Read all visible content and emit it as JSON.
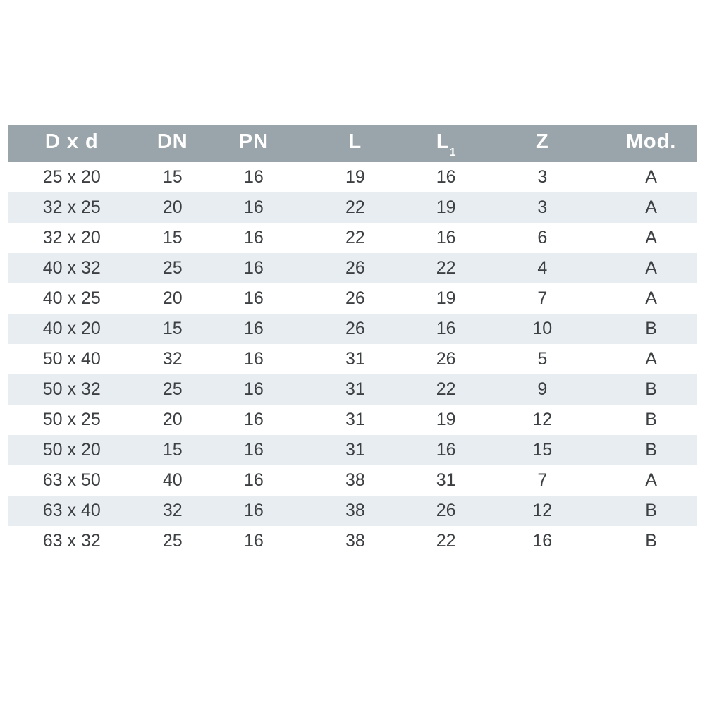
{
  "table": {
    "headers": [
      {
        "label": "D x d",
        "sub": ""
      },
      {
        "label": "DN",
        "sub": ""
      },
      {
        "label": "PN",
        "sub": ""
      },
      {
        "label": "L",
        "sub": ""
      },
      {
        "label": "L",
        "sub": "1"
      },
      {
        "label": "Z",
        "sub": ""
      },
      {
        "label": "Mod.",
        "sub": ""
      }
    ],
    "rows": [
      [
        "25 x 20",
        "15",
        "16",
        "19",
        "16",
        "3",
        "A"
      ],
      [
        "32 x 25",
        "20",
        "16",
        "22",
        "19",
        "3",
        "A"
      ],
      [
        "32 x 20",
        "15",
        "16",
        "22",
        "16",
        "6",
        "A"
      ],
      [
        "40 x 32",
        "25",
        "16",
        "26",
        "22",
        "4",
        "A"
      ],
      [
        "40 x 25",
        "20",
        "16",
        "26",
        "19",
        "7",
        "A"
      ],
      [
        "40 x 20",
        "15",
        "16",
        "26",
        "16",
        "10",
        "B"
      ],
      [
        "50 x 40",
        "32",
        "16",
        "31",
        "26",
        "5",
        "A"
      ],
      [
        "50 x 32",
        "25",
        "16",
        "31",
        "22",
        "9",
        "B"
      ],
      [
        "50 x 25",
        "20",
        "16",
        "31",
        "19",
        "12",
        "B"
      ],
      [
        "50 x 20",
        "15",
        "16",
        "31",
        "16",
        "15",
        "B"
      ],
      [
        "63 x 50",
        "40",
        "16",
        "38",
        "31",
        "7",
        "A"
      ],
      [
        "63 x 40",
        "32",
        "16",
        "38",
        "26",
        "12",
        "B"
      ],
      [
        "63 x 32",
        "25",
        "16",
        "38",
        "22",
        "16",
        "B"
      ]
    ]
  },
  "colors": {
    "header_bg": "#9aa5ab",
    "header_text": "#ffffff",
    "stripe_bg": "#e8edf1",
    "row_bg": "#ffffff",
    "cell_text": "#3d4043",
    "page_bg": "#ffffff"
  }
}
